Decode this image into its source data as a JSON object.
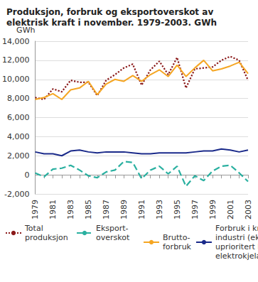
{
  "chart_data": {
    "type": "line",
    "title": "Produksjon, forbruk og eksportoverskot av elektrisk kraft i november. 1979-2003. GWh",
    "y_label": "GWh",
    "categories": [
      1979,
      null,
      1981,
      null,
      1983,
      null,
      1985,
      null,
      1987,
      null,
      1989,
      null,
      1991,
      null,
      1993,
      null,
      1995,
      null,
      1997,
      null,
      1999,
      null,
      2001,
      null,
      2003
    ],
    "series": [
      {
        "name": "Total\nproduksjon",
        "color": "#8b1a1a",
        "line_style": "dotted",
        "values": [
          8100,
          7900,
          9000,
          8700,
          9900,
          9700,
          9700,
          8300,
          9900,
          10500,
          11200,
          11600,
          9400,
          11000,
          11900,
          10500,
          12300,
          9100,
          11100,
          11200,
          11300,
          12000,
          12400,
          12000,
          9900
        ]
      },
      {
        "name": "Eksport-\noverskot",
        "color": "#2ab0a0",
        "line_style": "dashed",
        "values": [
          200,
          -200,
          600,
          700,
          1000,
          500,
          -100,
          -300,
          300,
          500,
          1400,
          1300,
          -400,
          500,
          900,
          100,
          900,
          -1200,
          -100,
          -600,
          400,
          900,
          1000,
          200,
          -700
        ]
      },
      {
        "name": "Brutto-\nforbruk",
        "color": "#f5a623",
        "line_style": "solid",
        "values": [
          7900,
          8100,
          8500,
          7900,
          8900,
          9100,
          9800,
          8400,
          9500,
          10000,
          9800,
          10400,
          9800,
          10500,
          11000,
          10300,
          11500,
          10300,
          11200,
          12000,
          10900,
          11100,
          11400,
          11800,
          10600
        ]
      },
      {
        "name": "Forbruk i kraftintensiv\nindustri (eksklusive\nuprioritert kraft til\nelektrokjelar)",
        "color": "#1a2a8a",
        "line_style": "solid",
        "values": [
          2400,
          2200,
          2200,
          2000,
          2500,
          2600,
          2400,
          2300,
          2400,
          2400,
          2400,
          2300,
          2200,
          2200,
          2300,
          2300,
          2300,
          2300,
          2400,
          2500,
          2500,
          2700,
          2600,
          2400,
          2600
        ]
      }
    ],
    "ylim": [
      -2000,
      14000
    ],
    "yticks": [
      -2000,
      0,
      2000,
      4000,
      6000,
      8000,
      10000,
      12000,
      14000
    ],
    "grid": true,
    "legend": "bottom"
  }
}
